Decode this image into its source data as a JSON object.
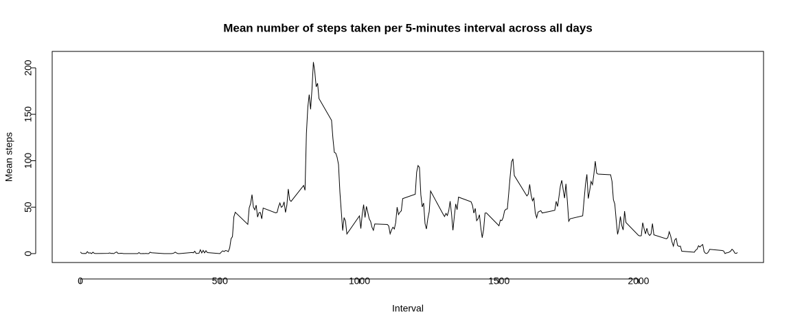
{
  "chart_data": {
    "type": "line",
    "title": "Mean number of steps taken per 5-minutes interval across all days",
    "x_label": "Interval",
    "y_label": "Mean steps",
    "color": "#000000",
    "xlim": [
      -101,
      2448
    ],
    "ylim": [
      -9.6,
      217.7
    ],
    "xticks": [
      0,
      500,
      1000,
      1500,
      2000
    ],
    "yticks": [
      0,
      50,
      100,
      150,
      200
    ],
    "x": [
      0,
      5,
      10,
      15,
      20,
      25,
      30,
      35,
      40,
      45,
      50,
      55,
      100,
      105,
      110,
      115,
      120,
      125,
      130,
      135,
      140,
      145,
      150,
      155,
      200,
      205,
      210,
      215,
      220,
      225,
      230,
      235,
      240,
      245,
      250,
      255,
      300,
      305,
      310,
      315,
      320,
      325,
      330,
      335,
      340,
      345,
      350,
      355,
      400,
      405,
      410,
      415,
      420,
      425,
      430,
      435,
      440,
      445,
      450,
      455,
      500,
      505,
      510,
      515,
      520,
      525,
      530,
      535,
      540,
      545,
      550,
      555,
      600,
      605,
      610,
      615,
      620,
      625,
      630,
      635,
      640,
      645,
      650,
      655,
      700,
      705,
      710,
      715,
      720,
      725,
      730,
      735,
      740,
      745,
      750,
      755,
      800,
      805,
      810,
      815,
      820,
      825,
      830,
      835,
      840,
      845,
      850,
      855,
      900,
      905,
      910,
      915,
      920,
      925,
      930,
      935,
      940,
      945,
      950,
      955,
      1000,
      1005,
      1010,
      1015,
      1020,
      1025,
      1030,
      1035,
      1040,
      1045,
      1050,
      1055,
      1100,
      1105,
      1110,
      1115,
      1120,
      1125,
      1130,
      1135,
      1140,
      1145,
      1150,
      1155,
      1200,
      1205,
      1210,
      1215,
      1220,
      1225,
      1230,
      1235,
      1240,
      1245,
      1250,
      1255,
      1300,
      1305,
      1310,
      1315,
      1320,
      1325,
      1330,
      1335,
      1340,
      1345,
      1350,
      1355,
      1400,
      1405,
      1410,
      1415,
      1420,
      1425,
      1430,
      1435,
      1440,
      1445,
      1450,
      1455,
      1500,
      1505,
      1510,
      1515,
      1520,
      1525,
      1530,
      1535,
      1540,
      1545,
      1550,
      1555,
      1600,
      1605,
      1610,
      1615,
      1620,
      1625,
      1630,
      1635,
      1640,
      1645,
      1650,
      1655,
      1700,
      1705,
      1710,
      1715,
      1720,
      1725,
      1730,
      1735,
      1740,
      1745,
      1750,
      1755,
      1800,
      1805,
      1810,
      1815,
      1820,
      1825,
      1830,
      1835,
      1840,
      1845,
      1850,
      1855,
      1900,
      1905,
      1910,
      1915,
      1920,
      1925,
      1930,
      1935,
      1940,
      1945,
      1950,
      1955,
      2000,
      2005,
      2010,
      2015,
      2020,
      2025,
      2030,
      2035,
      2040,
      2045,
      2050,
      2055,
      2100,
      2105,
      2110,
      2115,
      2120,
      2125,
      2130,
      2135,
      2140,
      2145,
      2150,
      2155,
      2200,
      2205,
      2210,
      2215,
      2220,
      2225,
      2230,
      2235,
      2240,
      2245,
      2250,
      2255,
      2300,
      2305,
      2310,
      2315,
      2320,
      2325,
      2330,
      2335,
      2340,
      2345,
      2350,
      2355
    ],
    "values": [
      1.7,
      0.3,
      0.1,
      0.2,
      0.1,
      2.1,
      0.5,
      0.9,
      0,
      1.5,
      0.3,
      0.1,
      0.3,
      0.7,
      0.2,
      0.3,
      0,
      1.1,
      1.8,
      0.2,
      0.2,
      0.4,
      0.3,
      0,
      0,
      0,
      1.1,
      0,
      0,
      0.1,
      0,
      0.2,
      0,
      0,
      1.5,
      0.9,
      0,
      0,
      0,
      0,
      0,
      0,
      0.2,
      0.6,
      1.6,
      0.6,
      0,
      0,
      1.2,
      0.9,
      2.5,
      0.1,
      0.3,
      0.4,
      4.1,
      0.7,
      3.5,
      0.8,
      3.1,
      1.1,
      0,
      1.6,
      3.0,
      2.2,
      3.3,
      3.0,
      2.1,
      6.1,
      16.0,
      18.3,
      39.5,
      44.5,
      31.5,
      49.3,
      53.8,
      63.5,
      50.0,
      47.1,
      52.2,
      39.3,
      44.0,
      44.2,
      37.4,
      49.0,
      43.8,
      44.4,
      50.5,
      54.5,
      49.9,
      51.0,
      55.7,
      44.3,
      52.3,
      69.5,
      57.8,
      56.2,
      73.4,
      68.2,
      129.4,
      157.5,
      171.2,
      155.4,
      177.3,
      206.2,
      195.9,
      179.6,
      183.4,
      167.0,
      143.5,
      124.0,
      109.1,
      108.1,
      103.7,
      96.0,
      66.2,
      45.2,
      24.8,
      38.8,
      35.0,
      21.1,
      40.6,
      27.0,
      42.4,
      52.7,
      38.9,
      50.8,
      44.3,
      37.4,
      34.7,
      28.3,
      25.1,
      31.9,
      31.4,
      29.7,
      21.3,
      25.5,
      28.4,
      26.5,
      33.4,
      50.0,
      42.0,
      44.6,
      46.0,
      59.2,
      63.9,
      87.7,
      94.8,
      92.8,
      63.4,
      50.2,
      54.5,
      32.4,
      26.5,
      37.7,
      45.1,
      67.3,
      42.3,
      39.9,
      43.3,
      41.0,
      46.2,
      56.4,
      42.8,
      25.1,
      40.0,
      53.5,
      47.3,
      60.8,
      55.8,
      52.0,
      43.6,
      48.7,
      35.5,
      37.5,
      41.8,
      27.5,
      17.1,
      26.1,
      43.6,
      43.8,
      30.0,
      36.1,
      35.5,
      38.8,
      46.0,
      47.8,
      48.1,
      65.3,
      82.9,
      98.7,
      102.1,
      84.0,
      62.1,
      64.1,
      74.5,
      63.2,
      56.9,
      59.8,
      43.9,
      38.6,
      44.7,
      45.5,
      46.2,
      43.7,
      46.6,
      56.3,
      50.7,
      61.2,
      72.7,
      78.9,
      68.9,
      59.7,
      75.1,
      56.5,
      34.8,
      37.5,
      40.7,
      58.0,
      74.7,
      85.3,
      59.3,
      67.8,
      77.7,
      74.2,
      85.3,
      99.5,
      86.6,
      85.6,
      84.9,
      77.8,
      58.0,
      53.4,
      36.3,
      20.7,
      27.4,
      40.0,
      30.2,
      25.5,
      45.7,
      33.5,
      19.6,
      19.0,
      19.3,
      33.3,
      26.8,
      21.2,
      27.3,
      21.3,
      19.5,
      21.3,
      32.3,
      20.2,
      15.9,
      17.2,
      23.5,
      19.2,
      12.5,
      8.0,
      14.7,
      16.3,
      8.7,
      7.8,
      8.1,
      2.6,
      1.5,
      3.7,
      4.8,
      8.5,
      7.1,
      8.7,
      9.8,
      2.2,
      0.3,
      0.1,
      1.6,
      4.6,
      3.3,
      2.8,
      0,
      0.8,
      1.0,
      1.6,
      2.6,
      4.7,
      3.3,
      0.6,
      0.2,
      1.1
    ]
  }
}
